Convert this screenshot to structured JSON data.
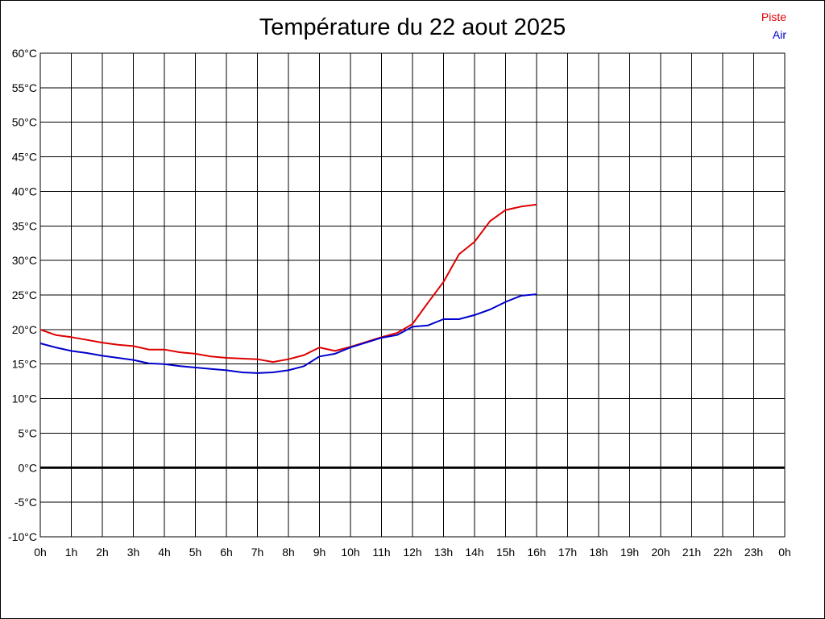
{
  "chart_data": {
    "type": "line",
    "title": "Température du 22 aout 2025",
    "xlabel": "",
    "ylabel": "",
    "xlim": [
      0,
      24
    ],
    "ylim": [
      -10,
      60
    ],
    "grid": true,
    "legend_position": "top-right",
    "x_tick_labels": [
      "0h",
      "1h",
      "2h",
      "3h",
      "4h",
      "5h",
      "6h",
      "7h",
      "8h",
      "9h",
      "10h",
      "11h",
      "12h",
      "13h",
      "14h",
      "15h",
      "16h",
      "17h",
      "18h",
      "19h",
      "20h",
      "21h",
      "22h",
      "23h",
      "0h"
    ],
    "y_tick_labels": [
      "-10°C",
      "-5°C",
      "0°C",
      "5°C",
      "10°C",
      "15°C",
      "20°C",
      "25°C",
      "30°C",
      "35°C",
      "40°C",
      "45°C",
      "50°C",
      "55°C",
      "60°C"
    ],
    "y_tick_values": [
      -10,
      -5,
      0,
      5,
      10,
      15,
      20,
      25,
      30,
      35,
      40,
      45,
      50,
      55,
      60
    ],
    "series": [
      {
        "name": "Piste",
        "color": "#dd0000",
        "x": [
          0,
          0.5,
          1,
          1.5,
          2,
          2.5,
          3,
          3.5,
          4,
          4.5,
          5,
          5.5,
          6,
          6.5,
          7,
          7.5,
          8,
          8.5,
          9,
          9.5,
          10,
          10.5,
          11,
          11.5,
          12,
          12.5,
          13,
          13.5,
          14,
          14.5,
          15,
          15.5,
          16
        ],
        "y": [
          20,
          19.2,
          18.9,
          18.5,
          18.1,
          17.8,
          17.6,
          17.1,
          17.1,
          16.7,
          16.5,
          16.1,
          15.9,
          15.8,
          15.7,
          15.3,
          15.7,
          16.3,
          17.4,
          16.9,
          17.5,
          18.2,
          18.9,
          19.5,
          20.8,
          23.9,
          26.9,
          30.9,
          32.7,
          35.7,
          37.3,
          37.8,
          38.1
        ]
      },
      {
        "name": "Air",
        "color": "#0000cc",
        "x": [
          0,
          0.5,
          1,
          1.5,
          2,
          2.5,
          3,
          3.5,
          4,
          4.5,
          5,
          5.5,
          6,
          6.5,
          7,
          7.5,
          8,
          8.5,
          9,
          9.5,
          10,
          10.5,
          11,
          11.5,
          12,
          12.5,
          13,
          13.5,
          14,
          14.5,
          15,
          15.5,
          16
        ],
        "y": [
          18,
          17.4,
          16.9,
          16.6,
          16.2,
          15.9,
          15.6,
          15.1,
          15,
          14.7,
          14.5,
          14.3,
          14.1,
          13.8,
          13.7,
          13.8,
          14.1,
          14.7,
          16.1,
          16.5,
          17.4,
          18.1,
          18.8,
          19.2,
          20.4,
          20.6,
          21.5,
          21.5,
          22.1,
          22.9,
          24,
          24.9,
          25.1
        ]
      }
    ]
  }
}
